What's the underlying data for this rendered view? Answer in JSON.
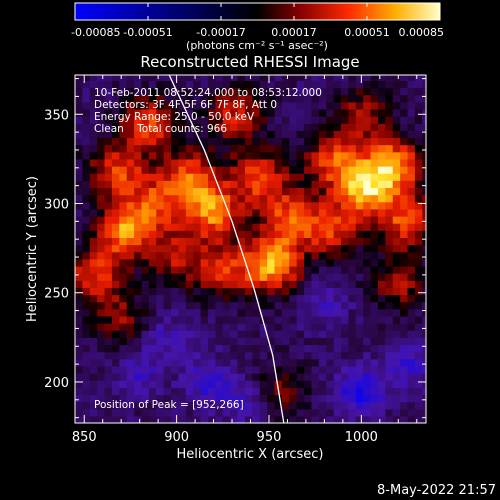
{
  "chart_data": {
    "type": "heatmap",
    "title": "Reconstructed RHESSI Image",
    "xlabel": "Heliocentric X (arcsec)",
    "ylabel": "Heliocentric Y (arcsec)",
    "xlim": [
      845,
      1035
    ],
    "ylim": [
      177,
      372
    ],
    "xticks": [
      "850",
      "900",
      "950",
      "1000"
    ],
    "xtick_values": [
      850,
      900,
      950,
      1000
    ],
    "yticks": [
      "200",
      "250",
      "300",
      "350"
    ],
    "ytick_values": [
      200,
      250,
      300,
      350
    ],
    "colorbar": {
      "ticks": [
        "-0.00085",
        "-0.00051",
        "-0.00017",
        "0.00017",
        "0.00051",
        "0.00085"
      ],
      "tick_values": [
        -0.00085,
        -0.00051,
        -0.00017,
        0.00017,
        0.00051,
        0.00085
      ],
      "range": [
        -0.00085,
        0.00085
      ],
      "label": "(photons cm⁻² s⁻¹ asec⁻²)"
    },
    "annotations": {
      "time_range": "10-Feb-2011 08:52:24.000 to 08:53:12.000",
      "detectors": "Detectors: 3F 4F 5F 6F 7F 8F, Att 0",
      "energy_range": "Energy Range: 25.0 - 50.0 keV",
      "method": "Clean    Total counts: 966",
      "peak_position": "Position of Peak = [952,266]"
    },
    "peak": {
      "x": 952,
      "y": 266
    },
    "limb": [
      [
        896,
        372
      ],
      [
        915,
        330
      ],
      [
        930,
        290
      ],
      [
        942,
        252
      ],
      [
        952,
        215
      ],
      [
        958,
        177
      ]
    ],
    "grid": false,
    "colormap": "blue-black-red-yellow-white",
    "hot_spots": [
      {
        "x": 855,
        "y": 260,
        "amp": 0.00055
      },
      {
        "x": 872,
        "y": 285,
        "amp": 0.00075
      },
      {
        "x": 868,
        "y": 318,
        "amp": 0.0006
      },
      {
        "x": 885,
        "y": 345,
        "amp": 0.0006
      },
      {
        "x": 890,
        "y": 300,
        "amp": 0.0005
      },
      {
        "x": 908,
        "y": 315,
        "amp": 0.0006
      },
      {
        "x": 920,
        "y": 295,
        "amp": 0.0007
      },
      {
        "x": 945,
        "y": 315,
        "amp": 0.0006
      },
      {
        "x": 932,
        "y": 350,
        "amp": 0.0005
      },
      {
        "x": 952,
        "y": 266,
        "amp": 0.00085
      },
      {
        "x": 925,
        "y": 262,
        "amp": 0.0005
      },
      {
        "x": 962,
        "y": 292,
        "amp": 0.0006
      },
      {
        "x": 985,
        "y": 325,
        "amp": 0.0006
      },
      {
        "x": 1002,
        "y": 308,
        "amp": 0.0008
      },
      {
        "x": 1018,
        "y": 322,
        "amp": 0.00075
      },
      {
        "x": 1025,
        "y": 290,
        "amp": 0.0006
      },
      {
        "x": 985,
        "y": 285,
        "amp": 0.0005
      },
      {
        "x": 1020,
        "y": 255,
        "amp": 0.0004
      },
      {
        "x": 870,
        "y": 235,
        "amp": 0.00035
      },
      {
        "x": 900,
        "y": 270,
        "amp": 0.0004
      },
      {
        "x": 955,
        "y": 195,
        "amp": 0.00035
      },
      {
        "x": 1000,
        "y": 350,
        "amp": 0.0004
      }
    ],
    "cold_spots": [
      {
        "x": 1000,
        "y": 195,
        "amp": -0.0005
      },
      {
        "x": 918,
        "y": 200,
        "amp": -0.00035
      },
      {
        "x": 938,
        "y": 190,
        "amp": -0.0003
      },
      {
        "x": 895,
        "y": 225,
        "amp": -0.00025
      },
      {
        "x": 980,
        "y": 245,
        "amp": -0.00025
      },
      {
        "x": 1025,
        "y": 210,
        "amp": -0.0003
      },
      {
        "x": 880,
        "y": 205,
        "amp": -0.00025
      }
    ]
  },
  "footer": {
    "timestamp": "8-May-2022 21:57"
  }
}
